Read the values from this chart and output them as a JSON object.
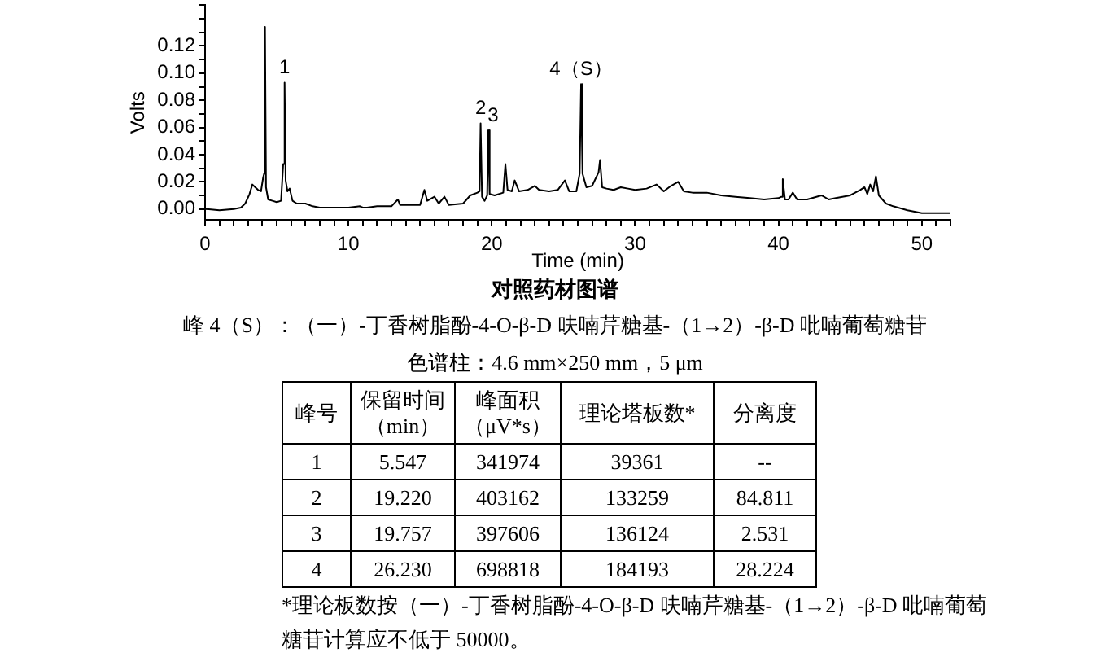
{
  "chart_data": [
    {
      "type": "line",
      "title": "对照药材图谱",
      "xlabel": "Time (min)",
      "ylabel": "Volts",
      "color": "#000000",
      "grid": false,
      "legend": false,
      "marker": "none",
      "x": [
        0,
        1,
        2,
        2.5,
        2.8,
        3.1,
        3.3,
        3.5,
        3.7,
        3.9,
        4.05,
        4.12,
        4.18,
        4.25,
        4.4,
        4.7,
        5,
        5.3,
        5.45,
        5.547,
        5.62,
        5.75,
        5.9,
        6.1,
        6.4,
        7,
        7.5,
        8,
        9,
        10,
        10.8,
        11,
        11.3,
        12,
        13,
        13.45,
        13.6,
        14,
        15,
        15.3,
        15.5,
        16,
        16.3,
        16.7,
        17,
        18,
        18.5,
        19,
        19.15,
        19.22,
        19.32,
        19.5,
        19.68,
        19.757,
        19.85,
        20.2,
        20.8,
        20.95,
        21.1,
        21.4,
        21.6,
        21.9,
        22.5,
        23,
        23.3,
        24,
        24.6,
        25.1,
        25.4,
        25.9,
        26.13,
        26.23,
        26.33,
        26.6,
        27,
        27.45,
        27.55,
        27.7,
        28,
        28.5,
        29,
        29.5,
        30,
        30.8,
        31.5,
        32,
        32.5,
        33,
        33.4,
        34,
        35,
        36,
        37,
        38,
        39,
        40,
        40.2,
        40.3,
        40.45,
        40.7,
        41,
        41.3,
        42,
        43,
        43.5,
        44,
        45,
        45.7,
        46,
        46.2,
        46.4,
        46.6,
        46.8,
        47,
        47.5,
        48,
        49,
        50,
        52
      ],
      "values": [
        0,
        -0.001,
        0,
        0.001,
        0.004,
        0.011,
        0.018,
        0.016,
        0.014,
        0.013,
        0.023,
        0.026,
        0.134,
        0.016,
        0.007,
        0.006,
        0.005,
        0.006,
        0.033,
        0.093,
        0.021,
        0.013,
        0.015,
        0.006,
        0.004,
        0.004,
        0.002,
        0.001,
        0.001,
        0.001,
        0.002,
        0.001,
        0.001,
        0.002,
        0.002,
        0.007,
        0.003,
        0.003,
        0.003,
        0.014,
        0.006,
        0.009,
        0.004,
        0.009,
        0.003,
        0.004,
        0.01,
        0.012,
        0.013,
        0.063,
        0.009,
        0.006,
        0.01,
        0.058,
        0.011,
        0.01,
        0.012,
        0.033,
        0.014,
        0.013,
        0.021,
        0.013,
        0.014,
        0.017,
        0.014,
        0.013,
        0.014,
        0.021,
        0.013,
        0.013,
        0.026,
        0.092,
        0.026,
        0.016,
        0.017,
        0.027,
        0.036,
        0.016,
        0.015,
        0.014,
        0.016,
        0.015,
        0.014,
        0.015,
        0.018,
        0.013,
        0.017,
        0.02,
        0.013,
        0.012,
        0.012,
        0.01,
        0.009,
        0.008,
        0.007,
        0.008,
        0.009,
        0.022,
        0.007,
        0.007,
        0.012,
        0.007,
        0.007,
        0.01,
        0.007,
        0.008,
        0.01,
        0.014,
        0.016,
        0.011,
        0.018,
        0.013,
        0.024,
        0.01,
        0.004,
        0.002,
        -0.001,
        -0.003,
        -0.003
      ],
      "xlim": [
        0,
        52
      ],
      "xticks": [
        0,
        {
          "value": 1,
          "label": null
        },
        {
          "value": 2,
          "label": null
        },
        {
          "value": 3,
          "label": null
        },
        {
          "value": 4,
          "label": null
        },
        {
          "value": 5,
          "label": null
        },
        {
          "value": 6,
          "label": null
        },
        {
          "value": 7,
          "label": null
        },
        {
          "value": 8,
          "label": null
        },
        {
          "value": 9,
          "label": null
        },
        10,
        {
          "value": 11,
          "label": null
        },
        {
          "value": 12,
          "label": null
        },
        {
          "value": 13,
          "label": null
        },
        {
          "value": 14,
          "label": null
        },
        {
          "value": 15,
          "label": null
        },
        {
          "value": 16,
          "label": null
        },
        {
          "value": 17,
          "label": null
        },
        {
          "value": 18,
          "label": null
        },
        {
          "value": 19,
          "label": null
        },
        20,
        {
          "value": 21,
          "label": null
        },
        {
          "value": 22,
          "label": null
        },
        {
          "value": 23,
          "label": null
        },
        {
          "value": 24,
          "label": null
        },
        {
          "value": 25,
          "label": null
        },
        {
          "value": 26,
          "label": null
        },
        {
          "value": 27,
          "label": null
        },
        {
          "value": 28,
          "label": null
        },
        {
          "value": 29,
          "label": null
        },
        30,
        {
          "value": 31,
          "label": null
        },
        {
          "value": 32,
          "label": null
        },
        {
          "value": 33,
          "label": null
        },
        {
          "value": 34,
          "label": null
        },
        {
          "value": 35,
          "label": null
        },
        {
          "value": 36,
          "label": null
        },
        {
          "value": 37,
          "label": null
        },
        {
          "value": 38,
          "label": null
        },
        {
          "value": 39,
          "label": null
        },
        40,
        {
          "value": 41,
          "label": null
        },
        {
          "value": 42,
          "label": null
        },
        {
          "value": 43,
          "label": null
        },
        {
          "value": 44,
          "label": null
        },
        {
          "value": 45,
          "label": null
        },
        {
          "value": 46,
          "label": null
        },
        {
          "value": 47,
          "label": null
        },
        {
          "value": 48,
          "label": null
        },
        {
          "value": 49,
          "label": null
        },
        50,
        {
          "value": 51,
          "label": null
        },
        {
          "value": 52,
          "label": null
        }
      ],
      "ylim": [
        -0.008,
        0.15
      ],
      "yticks": [
        {
          "value": 0,
          "label": "0.00"
        },
        {
          "value": 0.01,
          "label": null
        },
        {
          "value": 0.02,
          "label": "0.02"
        },
        {
          "value": 0.03,
          "label": null
        },
        {
          "value": 0.04,
          "label": "0.04"
        },
        {
          "value": 0.05,
          "label": null
        },
        {
          "value": 0.06,
          "label": "0.06"
        },
        {
          "value": 0.07,
          "label": null
        },
        {
          "value": 0.08,
          "label": "0.08"
        },
        {
          "value": 0.09,
          "label": null
        },
        {
          "value": 0.1,
          "label": "0.10"
        },
        {
          "value": 0.11,
          "label": null
        },
        {
          "value": 0.12,
          "label": "0.12"
        },
        {
          "value": 0.13,
          "label": null
        },
        {
          "value": 0.14,
          "label": null
        },
        {
          "value": 0.15,
          "label": null
        }
      ],
      "annotations": [
        {
          "text": "1",
          "x": 5.547,
          "y": 0.093
        },
        {
          "text": "2",
          "x": 19.22,
          "y": 0.063
        },
        {
          "text": "3",
          "x": 19.757,
          "y": 0.058
        },
        {
          "text": "4（S）",
          "x": 26.23,
          "y": 0.092
        },
        "峰 4（S）：（一）-丁香树脂酚-4-O-β-D 呋喃芹糖基-（1→2）-β-D 吡喃葡萄糖苷",
        "色谱柱：4.6 mm×250 mm，5 μm"
      ]
    },
    {
      "type": "heatmap",
      "ylabel": "峰号",
      "categories": [
        "保留时间（min）",
        "峰面积（μV*s）",
        "理论塔板数*",
        "分离度"
      ],
      "y_categories": [
        "1",
        "2",
        "3",
        "4"
      ],
      "cells": [
        [
          5.547,
          341974,
          39361,
          null
        ],
        [
          19.22,
          403162,
          133259,
          84.811
        ],
        [
          19.757,
          397606,
          136124,
          2.531
        ],
        [
          26.23,
          698818,
          184193,
          28.224
        ]
      ],
      "cell_labels": [
        [
          "5.547",
          "341974",
          "39361",
          "--"
        ],
        [
          "19.220",
          "403162",
          "133259",
          "84.811"
        ],
        [
          "19.757",
          "397606",
          "136124",
          "2.531"
        ],
        [
          "26.230",
          "698818",
          "184193",
          "28.224"
        ]
      ],
      "annotations": [
        "*理论板数按（一）-丁香树脂酚-4-O-β-D 呋喃芹糖基-（1→2）-β-D 吡喃葡萄糖苷计算应不低于 50000。"
      ]
    }
  ]
}
